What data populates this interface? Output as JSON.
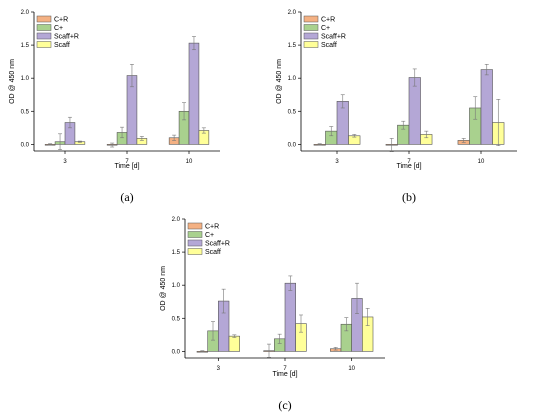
{
  "chart_data": [
    {
      "panel": "(a)",
      "type": "bar",
      "xlabel": "Time [d]",
      "ylabel": "OD @ 450 nm",
      "ylim": [
        -0.1,
        2.0
      ],
      "yticks": [
        "0.0",
        "0.5",
        "1.0",
        "1.5",
        "2.0"
      ],
      "categories": [
        "3",
        "7",
        "10"
      ],
      "legend_position": "top-left",
      "series": [
        {
          "name": "C+R",
          "color": "#f4b183",
          "values": [
            0.0,
            -0.01,
            0.1
          ],
          "errors": [
            0.01,
            0.03,
            0.04
          ]
        },
        {
          "name": "C+",
          "color": "#a9d18e",
          "values": [
            0.04,
            0.18,
            0.5
          ],
          "errors": [
            0.12,
            0.08,
            0.13
          ]
        },
        {
          "name": "Scaff+R",
          "color": "#b4a7d6",
          "values": [
            0.33,
            1.04,
            1.53
          ],
          "errors": [
            0.08,
            0.17,
            0.1
          ]
        },
        {
          "name": "Scaff",
          "color": "#ffff99",
          "values": [
            0.04,
            0.09,
            0.21
          ],
          "errors": [
            0.01,
            0.03,
            0.04
          ]
        }
      ]
    },
    {
      "panel": "(b)",
      "type": "bar",
      "xlabel": "Time [d]",
      "ylabel": "OD @ 450 nm",
      "ylim": [
        -0.1,
        2.0
      ],
      "yticks": [
        "0.0",
        "0.5",
        "1.0",
        "1.5",
        "2.0"
      ],
      "categories": [
        "3",
        "7",
        "10"
      ],
      "legend_position": "top-left",
      "series": [
        {
          "name": "C+R",
          "color": "#f4b183",
          "values": [
            0.0,
            -0.01,
            0.06
          ],
          "errors": [
            0.01,
            0.1,
            0.03
          ]
        },
        {
          "name": "C+",
          "color": "#a9d18e",
          "values": [
            0.2,
            0.29,
            0.55
          ],
          "errors": [
            0.07,
            0.06,
            0.17
          ]
        },
        {
          "name": "Scaff+R",
          "color": "#b4a7d6",
          "values": [
            0.65,
            1.01,
            1.13
          ],
          "errors": [
            0.1,
            0.13,
            0.08
          ]
        },
        {
          "name": "Scaff",
          "color": "#ffff99",
          "values": [
            0.13,
            0.15,
            0.33
          ],
          "errors": [
            0.02,
            0.05,
            0.35
          ]
        }
      ]
    },
    {
      "panel": "(c)",
      "type": "bar",
      "xlabel": "Time [d]",
      "ylabel": "OD @ 450 nm",
      "ylim": [
        -0.1,
        2.0
      ],
      "yticks": [
        "0.0",
        "0.5",
        "1.0",
        "1.5",
        "2.0"
      ],
      "categories": [
        "3",
        "7",
        "10"
      ],
      "legend_position": "top-left",
      "series": [
        {
          "name": "C+R",
          "color": "#f4b183",
          "values": [
            0.0,
            0.01,
            0.04
          ],
          "errors": [
            0.01,
            0.1,
            0.02
          ]
        },
        {
          "name": "C+",
          "color": "#a9d18e",
          "values": [
            0.31,
            0.19,
            0.41
          ],
          "errors": [
            0.14,
            0.07,
            0.1
          ]
        },
        {
          "name": "Scaff+R",
          "color": "#b4a7d6",
          "values": [
            0.76,
            1.03,
            0.8
          ],
          "errors": [
            0.18,
            0.11,
            0.23
          ]
        },
        {
          "name": "Scaff",
          "color": "#ffff99",
          "values": [
            0.23,
            0.42,
            0.52
          ],
          "errors": [
            0.02,
            0.13,
            0.13
          ]
        }
      ]
    }
  ]
}
